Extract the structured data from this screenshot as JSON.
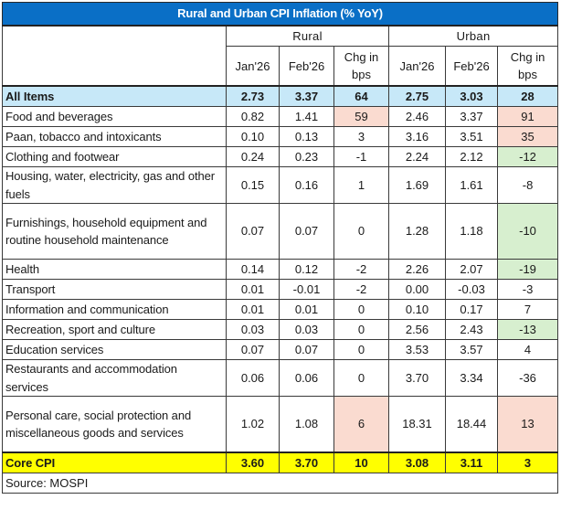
{
  "title": "Rural and Urban CPI Inflation (% YoY)",
  "groups": {
    "rural": "Rural",
    "urban": "Urban"
  },
  "subheaders": {
    "jan": "Jan'26",
    "feb": "Feb'26",
    "chg_line1": "Chg in",
    "chg_line2": "bps"
  },
  "colors": {
    "title_bg": "#0a6fc6",
    "all_items_bg": "#c7e8f8",
    "core_bg": "#ffff00",
    "increase_bg": "#fadbd0",
    "decrease_bg": "#d7efcf"
  },
  "rows": [
    {
      "label": "All Items",
      "rural_jan": "2.73",
      "rural_feb": "3.37",
      "rural_chg": "64",
      "urban_jan": "2.75",
      "urban_feb": "3.03",
      "urban_chg": "28"
    },
    {
      "label": "Food and beverages",
      "rural_jan": "0.82",
      "rural_feb": "1.41",
      "rural_chg": "59",
      "urban_jan": "2.46",
      "urban_feb": "3.37",
      "urban_chg": "91"
    },
    {
      "label": "Paan, tobacco and intoxicants",
      "rural_jan": "0.10",
      "rural_feb": "0.13",
      "rural_chg": "3",
      "urban_jan": "3.16",
      "urban_feb": "3.51",
      "urban_chg": "35"
    },
    {
      "label": "Clothing and footwear",
      "rural_jan": "0.24",
      "rural_feb": "0.23",
      "rural_chg": "-1",
      "urban_jan": "2.24",
      "urban_feb": "2.12",
      "urban_chg": "-12"
    },
    {
      "label": "Housing, water, electricity, gas and other fuels",
      "rural_jan": "0.15",
      "rural_feb": "0.16",
      "rural_chg": "1",
      "urban_jan": "1.69",
      "urban_feb": "1.61",
      "urban_chg": "-8"
    },
    {
      "label": "Furnishings, household equipment and routine household maintenance",
      "rural_jan": "0.07",
      "rural_feb": "0.07",
      "rural_chg": "0",
      "urban_jan": "1.28",
      "urban_feb": "1.18",
      "urban_chg": "-10"
    },
    {
      "label": "Health",
      "rural_jan": "0.14",
      "rural_feb": "0.12",
      "rural_chg": "-2",
      "urban_jan": "2.26",
      "urban_feb": "2.07",
      "urban_chg": "-19"
    },
    {
      "label": "Transport",
      "rural_jan": "0.01",
      "rural_feb": "-0.01",
      "rural_chg": "-2",
      "urban_jan": "0.00",
      "urban_feb": "-0.03",
      "urban_chg": "-3"
    },
    {
      "label": "Information and communication",
      "rural_jan": "0.01",
      "rural_feb": "0.01",
      "rural_chg": "0",
      "urban_jan": "0.10",
      "urban_feb": "0.17",
      "urban_chg": "7"
    },
    {
      "label": "Recreation, sport and culture",
      "rural_jan": "0.03",
      "rural_feb": "0.03",
      "rural_chg": "0",
      "urban_jan": "2.56",
      "urban_feb": "2.43",
      "urban_chg": "-13"
    },
    {
      "label": "Education services",
      "rural_jan": "0.07",
      "rural_feb": "0.07",
      "rural_chg": "0",
      "urban_jan": "3.53",
      "urban_feb": "3.57",
      "urban_chg": "4"
    },
    {
      "label": "Restaurants and accommodation services",
      "rural_jan": "0.06",
      "rural_feb": "0.06",
      "rural_chg": "0",
      "urban_jan": "3.70",
      "urban_feb": "3.34",
      "urban_chg": "-36"
    },
    {
      "label": "Personal care, social protection and miscellaneous goods and services",
      "rural_jan": "1.02",
      "rural_feb": "1.08",
      "rural_chg": "6",
      "urban_jan": "18.31",
      "urban_feb": "18.44",
      "urban_chg": "13"
    },
    {
      "label": "Core CPI",
      "rural_jan": "3.60",
      "rural_feb": "3.70",
      "rural_chg": "10",
      "urban_jan": "3.08",
      "urban_feb": "3.11",
      "urban_chg": "3"
    }
  ],
  "source": "Source: MOSPI"
}
